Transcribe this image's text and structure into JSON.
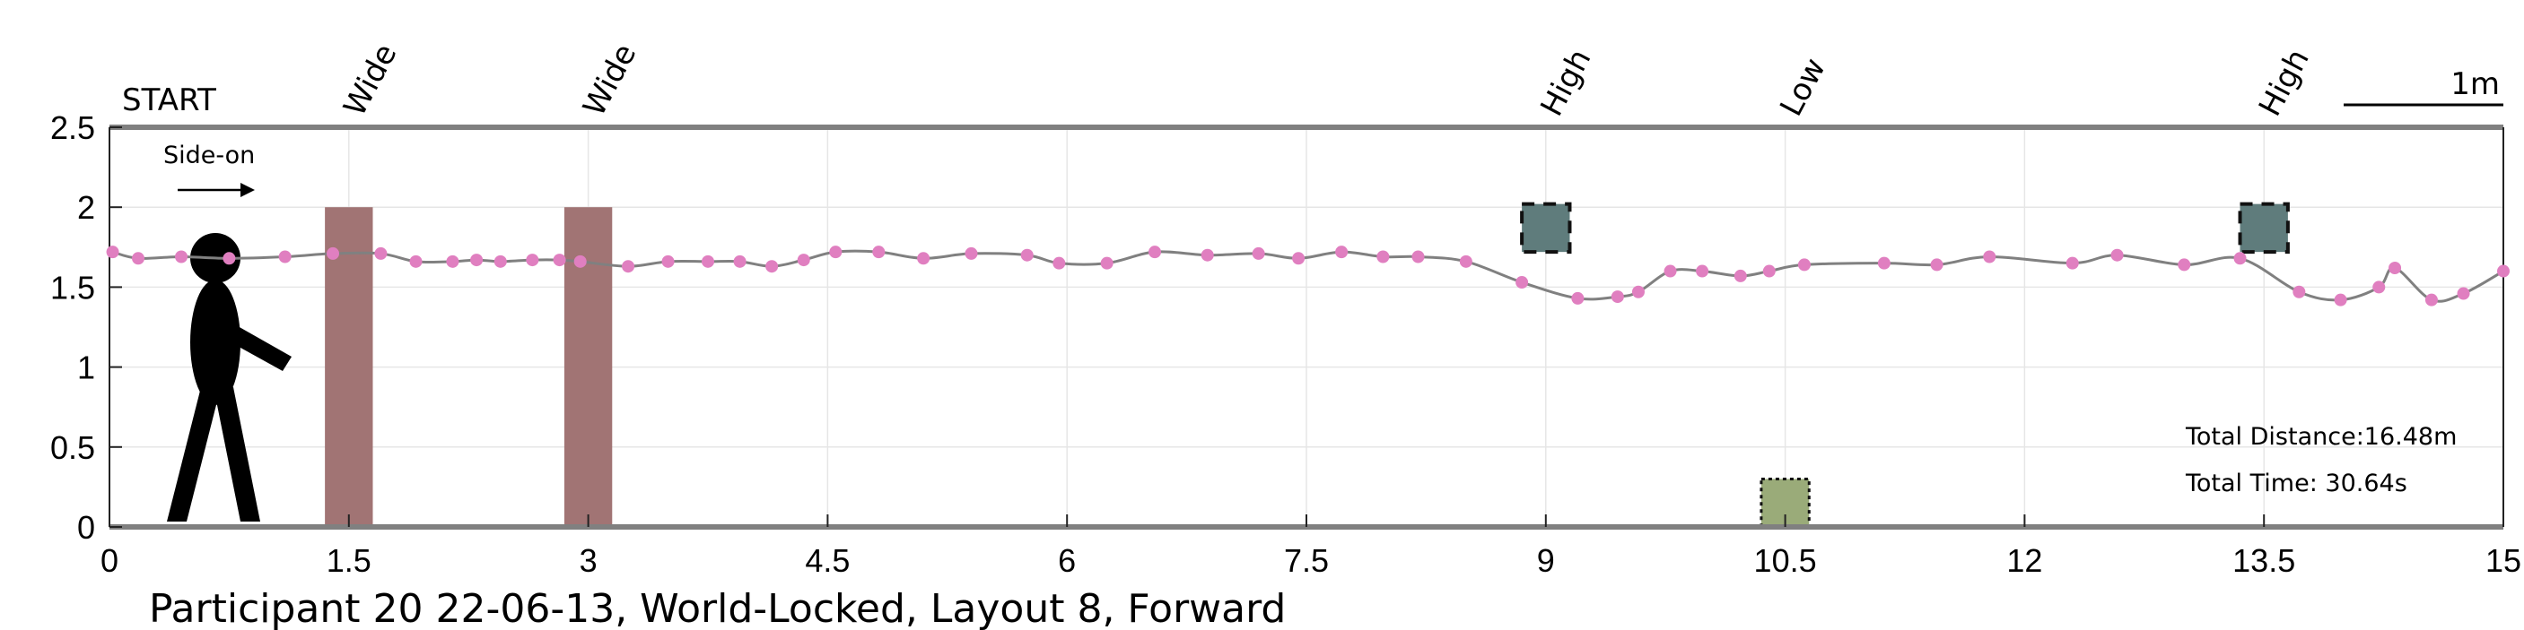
{
  "chart_data": {
    "type": "line",
    "title": "Participant 20 22-06-13, World-Locked, Layout 8, Forward",
    "xlabel": "",
    "ylabel": "",
    "xlim": [
      0,
      15
    ],
    "ylim": [
      0,
      2.5
    ],
    "x_ticks": [
      0,
      1.5,
      3,
      4.5,
      6,
      7.5,
      9,
      10.5,
      12,
      13.5,
      15
    ],
    "x_tick_labels": [
      "0",
      "1.5",
      "3",
      "4.5",
      "6",
      "7.5",
      "9",
      "10.5",
      "12",
      "13.5",
      "15"
    ],
    "y_ticks": [
      0,
      0.5,
      1,
      1.5,
      2,
      2.5
    ],
    "y_tick_labels": [
      "0",
      "0.5",
      "1",
      "1.5",
      "2",
      "2.5"
    ],
    "grid": true,
    "start_label": "START",
    "scale_bar_label": "1m",
    "direction_label": "Side-on",
    "obstacle_labels": [
      {
        "label": "Wide",
        "x": 1.5
      },
      {
        "label": "Wide",
        "x": 3.0
      },
      {
        "label": "High",
        "x": 9.0
      },
      {
        "label": "Low",
        "x": 10.5
      },
      {
        "label": "High",
        "x": 13.5
      }
    ],
    "obstacles": [
      {
        "kind": "wide",
        "x_from": 1.35,
        "x_to": 1.65,
        "y_from": 0,
        "y_to": 2.0,
        "color": "#a17474"
      },
      {
        "kind": "wide",
        "x_from": 2.85,
        "x_to": 3.15,
        "y_from": 0,
        "y_to": 2.0,
        "color": "#a17474"
      },
      {
        "kind": "high",
        "x_from": 8.85,
        "x_to": 9.15,
        "y_from": 1.72,
        "y_to": 2.02,
        "color": "#5f7c7c"
      },
      {
        "kind": "low",
        "x_from": 10.35,
        "x_to": 10.65,
        "y_from": 0.0,
        "y_to": 0.3,
        "color": "#9aab79"
      },
      {
        "kind": "high",
        "x_from": 13.35,
        "x_to": 13.65,
        "y_from": 1.72,
        "y_to": 2.02,
        "color": "#5f7c7c"
      }
    ],
    "stats": {
      "total_distance": "Total Distance:16.48m",
      "total_time": "Total Time: 30.64s"
    },
    "colors": {
      "trajectory_line": "#808080",
      "trajectory_points": "#e07fc0",
      "axis": "#808080",
      "grid": "#e6e6e6"
    },
    "series": [
      {
        "x": [
          0.02,
          0.18,
          0.45,
          0.75,
          1.1,
          1.4,
          1.7,
          1.92,
          2.15,
          2.3,
          2.45,
          2.65,
          2.82,
          2.95,
          3.25,
          3.5,
          3.75,
          3.95,
          4.15,
          4.35,
          4.55,
          4.82,
          5.1,
          5.4,
          5.75,
          5.95,
          6.25,
          6.55,
          6.88,
          7.2,
          7.45,
          7.72,
          7.98,
          8.2,
          8.5,
          8.85,
          9.2,
          9.45,
          9.58,
          9.78,
          9.98,
          10.22,
          10.4,
          10.62,
          11.12,
          11.45,
          11.78,
          12.3,
          12.58,
          13.0,
          13.35,
          13.72,
          13.98,
          14.22,
          14.32,
          14.55,
          14.75,
          15.0
        ],
        "y": [
          1.72,
          1.68,
          1.69,
          1.68,
          1.69,
          1.71,
          1.71,
          1.66,
          1.66,
          1.67,
          1.66,
          1.67,
          1.67,
          1.66,
          1.63,
          1.66,
          1.66,
          1.66,
          1.63,
          1.67,
          1.72,
          1.72,
          1.68,
          1.71,
          1.7,
          1.65,
          1.65,
          1.72,
          1.7,
          1.71,
          1.68,
          1.72,
          1.69,
          1.69,
          1.66,
          1.53,
          1.43,
          1.44,
          1.47,
          1.6,
          1.6,
          1.57,
          1.6,
          1.64,
          1.65,
          1.64,
          1.69,
          1.65,
          1.7,
          1.64,
          1.68,
          1.47,
          1.42,
          1.5,
          1.62,
          1.42,
          1.46,
          1.6
        ]
      }
    ]
  }
}
